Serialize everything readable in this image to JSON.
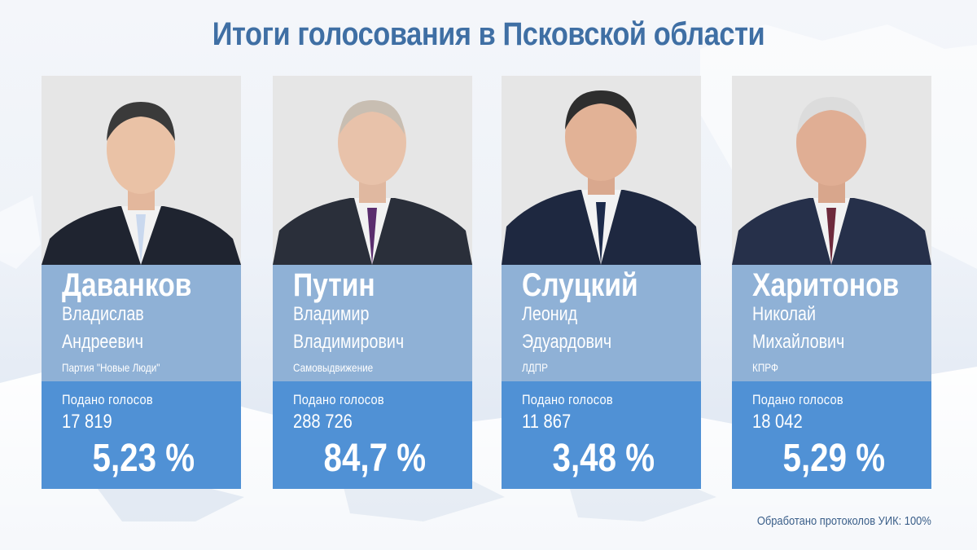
{
  "title": "Итоги голосования в Псковской области",
  "votes_label": "Подано голосов",
  "footer": "Обработано протоколов УИК: 100%",
  "colors": {
    "title": "#3f6fa4",
    "name_panel": "#8fb1d6",
    "votes_panel": "#5091d5",
    "text": "#ffffff"
  },
  "candidates": [
    {
      "surname": "Даванков",
      "given_line1": "Владислав",
      "given_line2": "Андреевич",
      "party": "Партия \"Новые Люди\"",
      "votes": "17 819",
      "percent": "5,23 %",
      "tie_color": "#c9d8ee",
      "hair_color": "#3a3a3a"
    },
    {
      "surname": "Путин",
      "given_line1": "Владимир",
      "given_line2": "Владимирович",
      "party": "Самовыдвижение",
      "votes": "288 726",
      "percent": "84,7 %",
      "tie_color": "#5a2d6e",
      "hair_color": "#c8beb2"
    },
    {
      "surname": "Слуцкий",
      "given_line1": "Леонид",
      "given_line2": "Эдуардович",
      "party": "ЛДПР",
      "votes": "11 867",
      "percent": "3,48 %",
      "tie_color": "#1c2a4a",
      "hair_color": "#2e2e2e"
    },
    {
      "surname": "Харитонов",
      "given_line1": "Николай",
      "given_line2": "Михайлович",
      "party": "КПРФ",
      "votes": "18 042",
      "percent": "5,29 %",
      "tie_color": "#6e2a3c",
      "hair_color": "#dcdcdc"
    }
  ]
}
